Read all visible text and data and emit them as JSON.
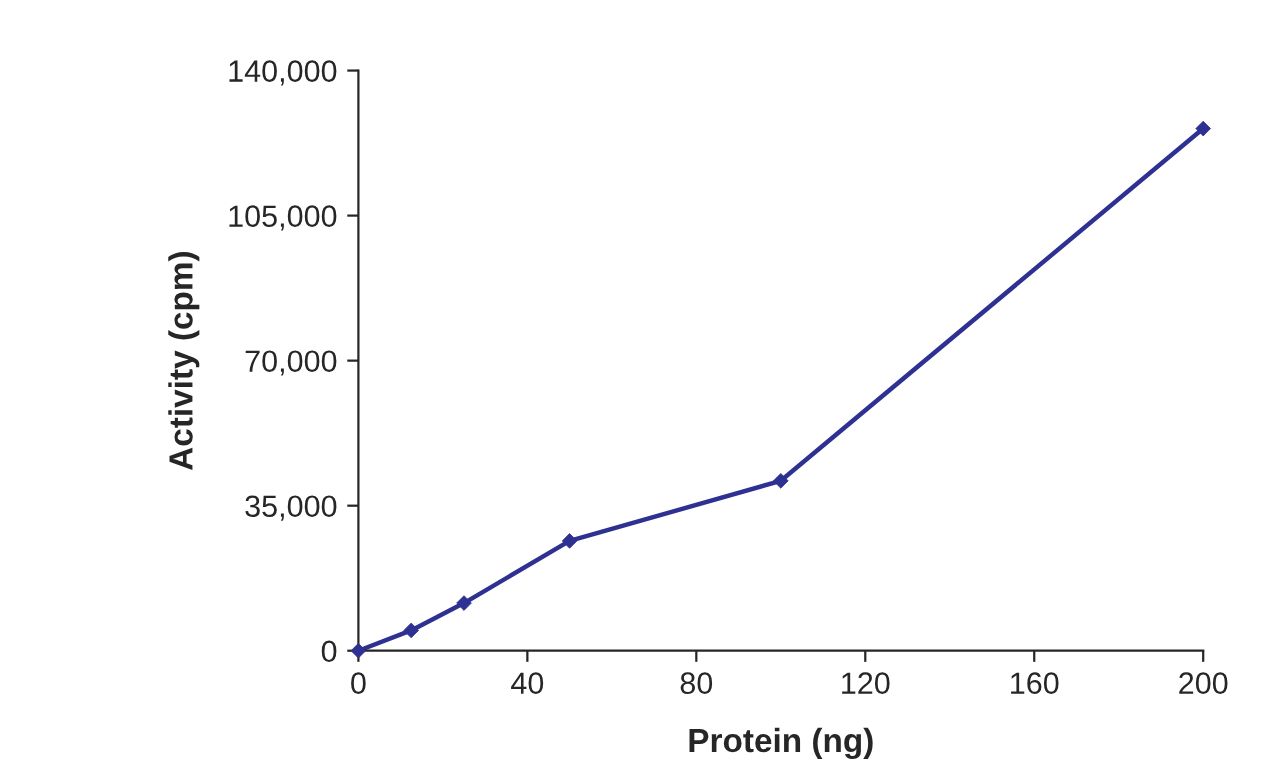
{
  "chart_data": {
    "type": "line",
    "xlabel": "Protein (ng)",
    "ylabel": "Activity (cpm)",
    "series": [
      {
        "color": "#2e3192",
        "x": [
          0,
          12.5,
          25,
          50,
          100,
          200
        ],
        "values": [
          0,
          4900,
          11500,
          26500,
          41000,
          126000
        ]
      }
    ],
    "xlim": [
      0,
      200
    ],
    "xticks": [
      0,
      40,
      80,
      120,
      160,
      200
    ],
    "ylim": [
      0,
      140000
    ],
    "yticks": [
      {
        "value": 0,
        "label": "0"
      },
      {
        "value": 35000,
        "label": "35,000"
      },
      {
        "value": 70000,
        "label": "70,000"
      },
      {
        "value": 105000,
        "label": "105,000"
      },
      {
        "value": 140000,
        "label": "140,000"
      }
    ],
    "grid": false,
    "legend": false,
    "marker": "diamond",
    "line_style": "solid"
  }
}
